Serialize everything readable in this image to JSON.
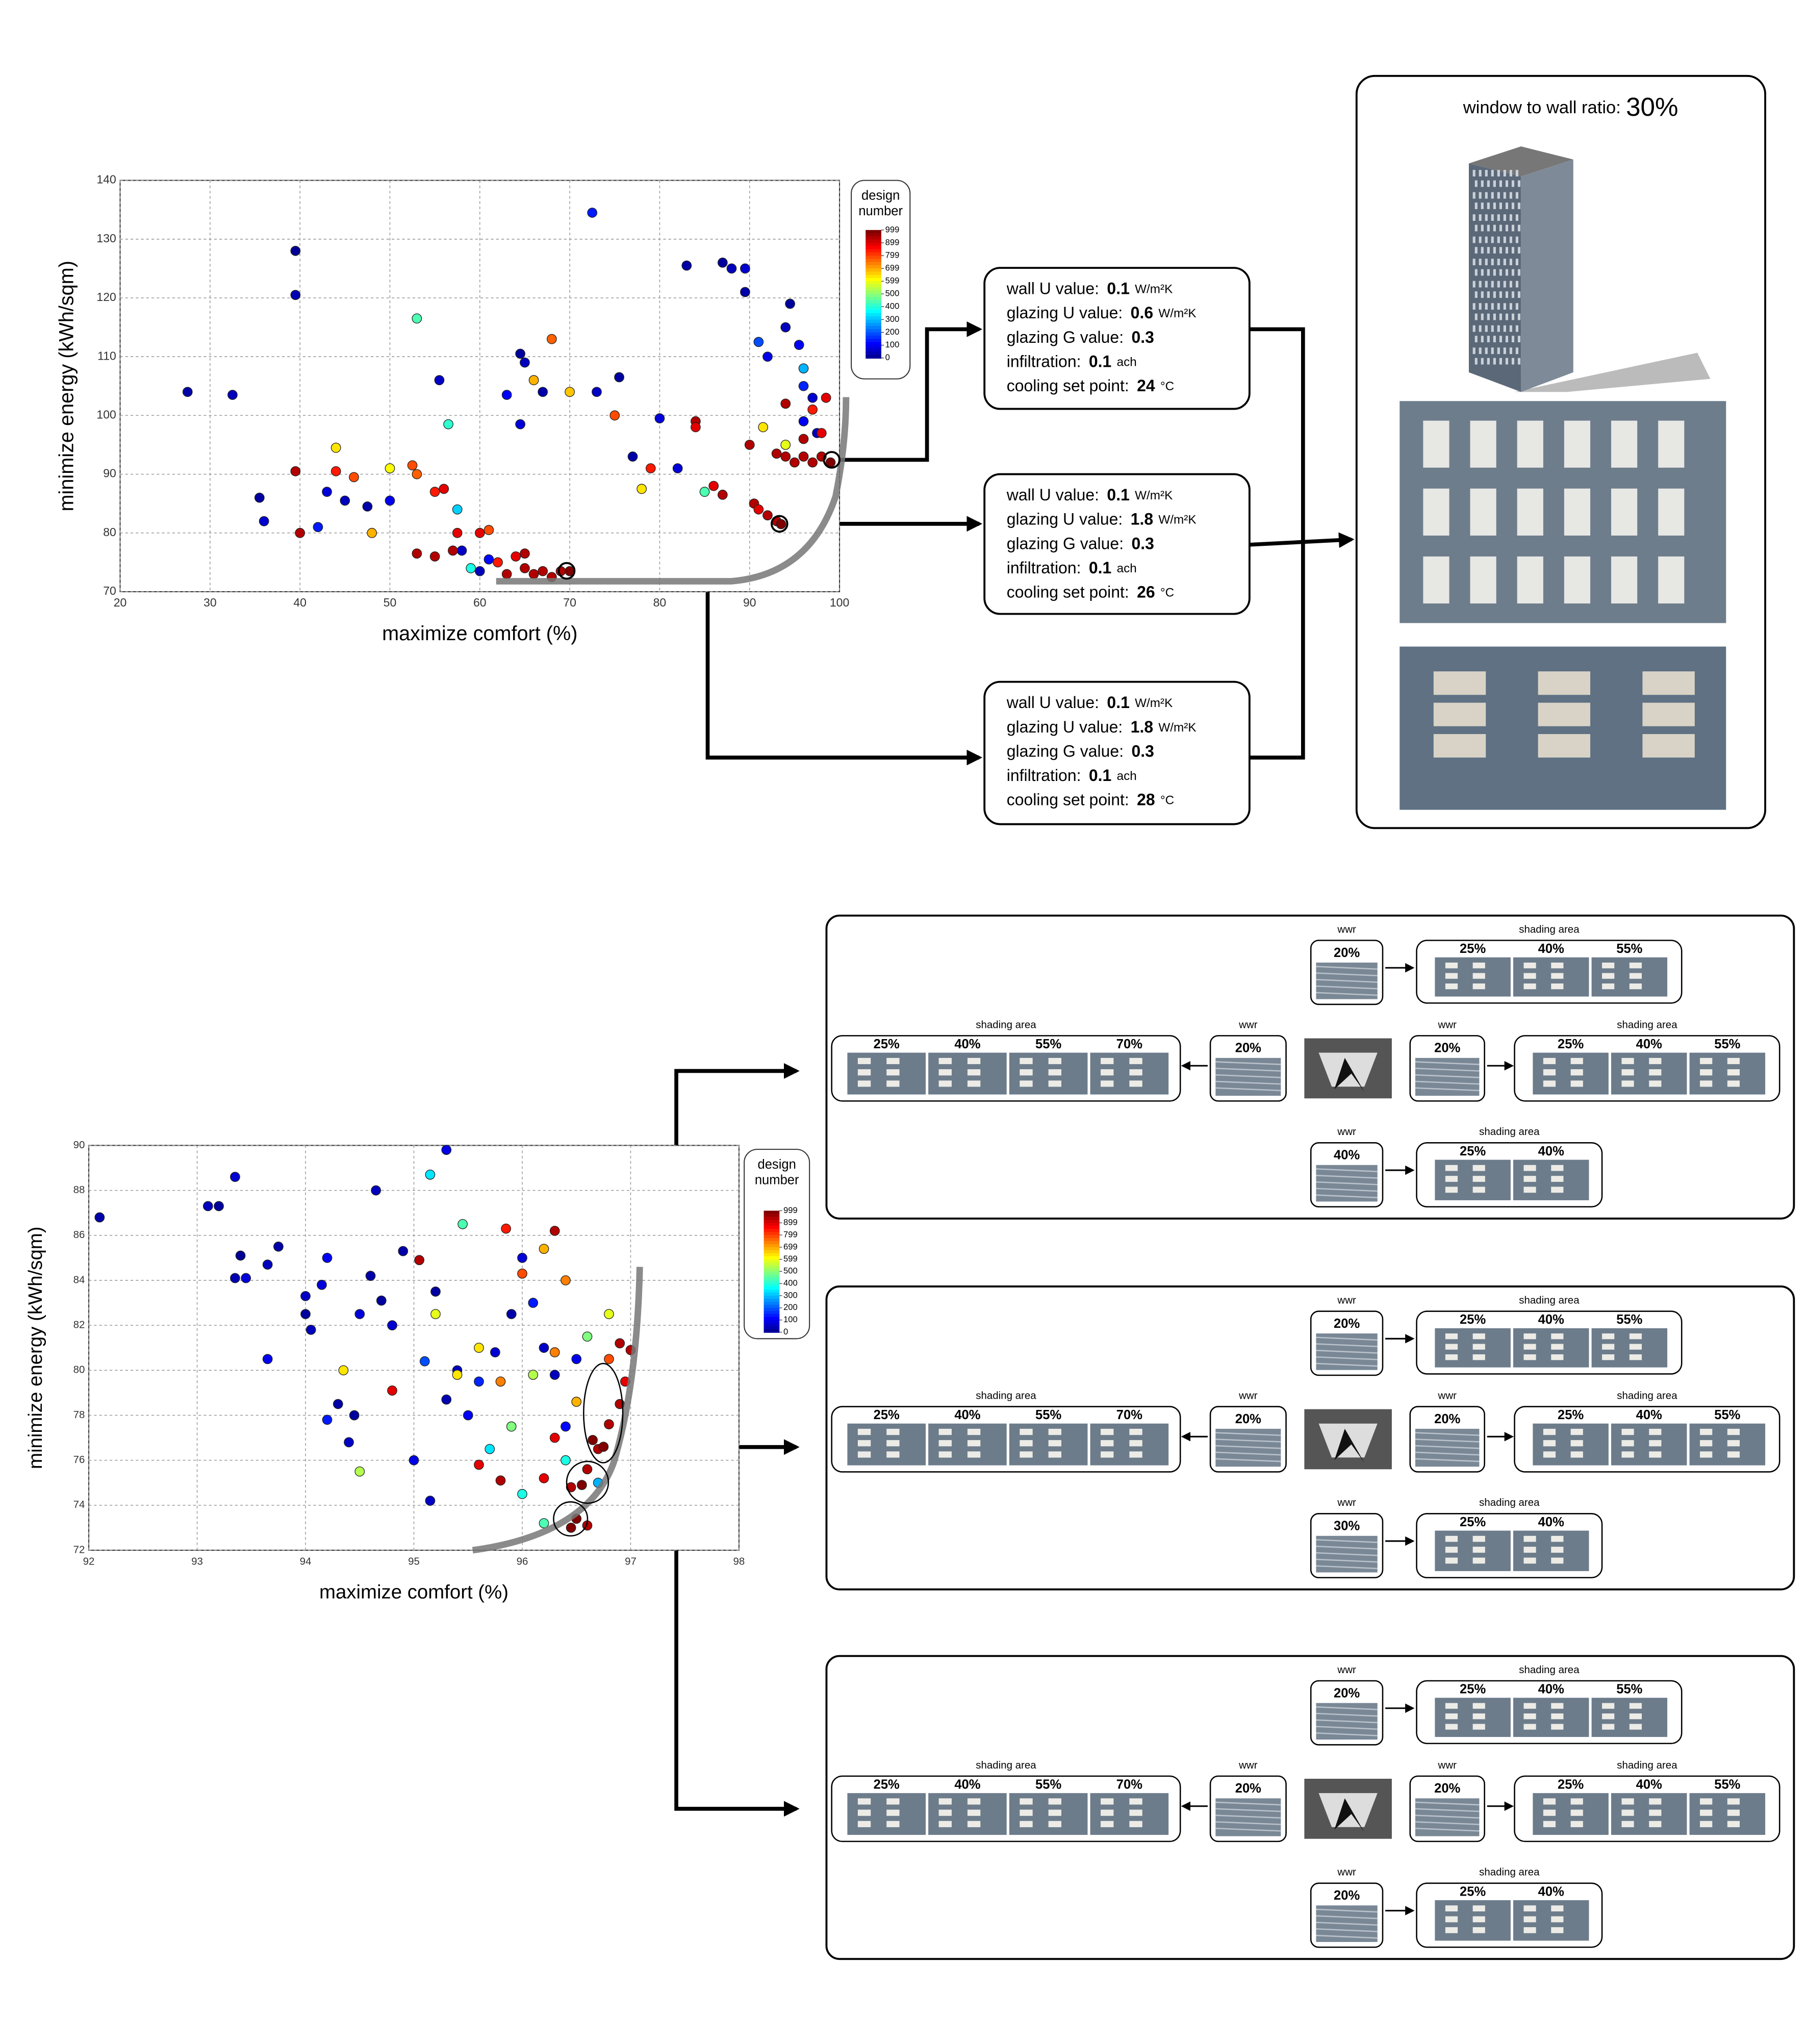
{
  "chart_data": [
    {
      "type": "scatter",
      "xlabel": "maximize comfort (%)",
      "ylabel": "minimize energy (kWh/sqm)",
      "xlim": [
        20,
        100
      ],
      "ylim": [
        70,
        140
      ],
      "xticks": [
        20,
        30,
        40,
        50,
        60,
        70,
        80,
        90,
        100
      ],
      "yticks": [
        70,
        80,
        90,
        100,
        110,
        120,
        130,
        140
      ],
      "grid": true,
      "colorbar": {
        "title": "design number",
        "clim": [
          0,
          999
        ],
        "ticks": [
          999,
          899,
          799,
          699,
          599,
          500,
          400,
          300,
          200,
          100,
          0
        ]
      },
      "x": [
        27.5,
        32.5,
        35.5,
        36,
        39.5,
        39.5,
        43,
        45,
        47.5,
        50,
        55.5,
        64.5,
        65,
        64.5,
        63,
        67,
        72.5,
        73,
        75.5,
        80,
        83,
        87,
        88,
        89.5,
        89.5,
        91,
        92,
        94.5,
        94,
        95.5,
        96,
        97,
        77,
        82,
        42,
        58,
        60,
        61,
        96,
        97.5,
        53,
        56.5,
        44,
        50,
        57.5,
        48,
        59,
        96,
        91.5,
        94,
        85,
        78,
        70,
        68,
        66,
        53,
        46,
        39.5,
        40,
        44,
        52.5,
        55,
        56,
        57.5,
        60,
        61,
        53,
        55,
        57,
        62,
        64,
        65,
        63,
        65,
        66,
        67,
        68,
        69,
        70,
        84,
        84,
        90,
        90.5,
        91,
        92,
        93,
        93.5,
        93,
        94,
        95,
        96,
        97,
        98,
        99,
        98,
        97,
        96,
        98.5,
        94,
        86,
        87,
        75,
        79
      ],
      "values": [
        104,
        103.5,
        86,
        82,
        128,
        120.5,
        87,
        85.5,
        84.5,
        85.5,
        106,
        110.5,
        109,
        98.5,
        103.5,
        104,
        134.5,
        104,
        106.5,
        99.5,
        125.5,
        126,
        125,
        125,
        121,
        112.5,
        110,
        119,
        115,
        112,
        105,
        103,
        93,
        91,
        81,
        77,
        73.5,
        75.5,
        99,
        97,
        116.5,
        98.5,
        94.5,
        91,
        84,
        80,
        74,
        108,
        98,
        95,
        87,
        87.5,
        104,
        113,
        106,
        90,
        89.5,
        90.5,
        80,
        90.5,
        91.5,
        87,
        87.5,
        80,
        80,
        80.5,
        76.5,
        76,
        77,
        75,
        76,
        76.5,
        73,
        74,
        73,
        73.5,
        72.5,
        73.5,
        73.5,
        99,
        98,
        95,
        85,
        84,
        83,
        82,
        81.5,
        93.5,
        93,
        92,
        93,
        92,
        93,
        92,
        97,
        101,
        96,
        103,
        102,
        88,
        86.5,
        100,
        91
      ],
      "color_values": [
        40,
        60,
        30,
        80,
        20,
        50,
        90,
        60,
        40,
        110,
        70,
        30,
        60,
        90,
        120,
        40,
        150,
        70,
        30,
        90,
        40,
        30,
        60,
        80,
        40,
        200,
        100,
        30,
        60,
        120,
        160,
        80,
        40,
        90,
        150,
        70,
        60,
        130,
        110,
        70,
        450,
        420,
        650,
        620,
        330,
        700,
        400,
        300,
        650,
        600,
        450,
        650,
        680,
        780,
        700,
        780,
        800,
        950,
        950,
        850,
        800,
        850,
        900,
        900,
        900,
        800,
        950,
        950,
        950,
        850,
        900,
        950,
        950,
        950,
        950,
        950,
        950,
        950,
        999,
        950,
        900,
        950,
        950,
        900,
        950,
        950,
        999,
        950,
        950,
        950,
        950,
        950,
        950,
        999,
        900,
        850,
        950,
        900,
        950,
        900,
        950,
        800,
        850
      ]
    },
    {
      "type": "scatter",
      "xlabel": "maximize comfort (%)",
      "ylabel": "minimize energy (kWh/sqm)",
      "xlim": [
        92,
        98
      ],
      "ylim": [
        72,
        90
      ],
      "xticks": [
        92,
        93,
        94,
        95,
        96,
        97,
        98
      ],
      "yticks": [
        72,
        74,
        76,
        78,
        80,
        82,
        84,
        86,
        88,
        90
      ],
      "grid": true,
      "colorbar": {
        "title": "design number",
        "clim": [
          0,
          999
        ],
        "ticks": [
          999,
          899,
          799,
          699,
          599,
          500,
          400,
          300,
          200,
          100,
          0
        ]
      },
      "x": [
        92.1,
        93.1,
        93.2,
        93.35,
        93.4,
        93.35,
        93.45,
        93.65,
        93.75,
        93.65,
        94,
        94,
        94.05,
        94.15,
        94.2,
        94.3,
        94.2,
        94.4,
        94.45,
        94.5,
        94.6,
        94.7,
        94.65,
        94.8,
        94.9,
        95.1,
        95.3,
        95.2,
        95.4,
        95.5,
        95.6,
        95.75,
        95.9,
        96,
        96.1,
        96.2,
        96.3,
        96.4,
        96.5,
        95.15,
        95,
        95.3,
        95.15,
        95.45,
        94.5,
        95.7,
        95.9,
        96,
        96.2,
        96.6,
        96.8,
        96.1,
        94.35,
        95.2,
        96.4,
        96.7,
        95.6,
        96.2,
        95.85,
        96.4,
        96.8,
        96.5,
        95.8,
        95.4,
        96,
        96.3,
        96.3,
        95.05,
        96.9,
        97,
        96.95,
        96.9,
        96.8,
        96.7,
        96.6,
        96.45,
        96.2,
        96.5,
        96.45,
        96.6,
        96.65,
        96.75,
        96.55,
        95.6,
        95.8,
        96.3,
        94.8
      ],
      "values": [
        86.8,
        87.3,
        87.3,
        88.6,
        85.1,
        84.1,
        84.1,
        84.7,
        85.5,
        80.5,
        83.3,
        82.5,
        81.8,
        83.8,
        85,
        78.5,
        77.8,
        76.8,
        78,
        82.5,
        84.2,
        83.1,
        88,
        82,
        85.3,
        80.4,
        89.8,
        83.5,
        80,
        78,
        79.5,
        80.8,
        82.5,
        85,
        83,
        81,
        79.8,
        77.5,
        80.5,
        74.2,
        76,
        78.7,
        88.7,
        86.5,
        75.5,
        76.5,
        77.5,
        74.5,
        73.2,
        81.5,
        82.5,
        79.8,
        80,
        82.5,
        76,
        75,
        81,
        85.4,
        86.3,
        84,
        80.5,
        78.6,
        79.5,
        79.8,
        84.3,
        80.8,
        86.2,
        84.9,
        81.2,
        80.9,
        79.5,
        78.5,
        77.6,
        76.5,
        75.6,
        74.8,
        75.2,
        73.4,
        73,
        73.1,
        76.9,
        76.6,
        74.9,
        75.8,
        75.1,
        77,
        79.1
      ],
      "color_values": [
        40,
        60,
        30,
        80,
        20,
        50,
        90,
        60,
        40,
        110,
        70,
        30,
        60,
        90,
        120,
        40,
        150,
        70,
        30,
        90,
        40,
        30,
        60,
        80,
        40,
        200,
        100,
        30,
        60,
        120,
        160,
        80,
        40,
        90,
        150,
        70,
        60,
        130,
        110,
        70,
        100,
        50,
        350,
        450,
        550,
        350,
        500,
        400,
        450,
        500,
        600,
        550,
        650,
        600,
        400,
        300,
        650,
        700,
        850,
        750,
        800,
        700,
        750,
        650,
        800,
        750,
        950,
        950,
        950,
        950,
        900,
        950,
        950,
        950,
        950,
        950,
        900,
        999,
        999,
        950,
        999,
        999,
        999,
        900,
        950,
        900,
        900
      ]
    }
  ],
  "top_diagram": {
    "params": [
      {
        "rows": [
          {
            "label": "wall U value:",
            "value": "0.1",
            "unit": "W/m²K"
          },
          {
            "label": "glazing U value:",
            "value": "0.6",
            "unit": "W/m²K"
          },
          {
            "label": "glazing G value:",
            "value": "0.3"
          },
          {
            "label": "infiltration:",
            "value": "0.1",
            "unit": "ach"
          },
          {
            "label": "cooling set point:",
            "value": "24",
            "unit": "°C"
          }
        ]
      },
      {
        "rows": [
          {
            "label": "wall U value:",
            "value": "0.1",
            "unit": "W/m²K"
          },
          {
            "label": "glazing U value:",
            "value": "1.8",
            "unit": "W/m²K"
          },
          {
            "label": "glazing G value:",
            "value": "0.3"
          },
          {
            "label": "infiltration:",
            "value": "0.1",
            "unit": "ach"
          },
          {
            "label": "cooling set point:",
            "value": "26",
            "unit": "°C"
          }
        ]
      },
      {
        "rows": [
          {
            "label": "wall U value:",
            "value": "0.1",
            "unit": "W/m²K"
          },
          {
            "label": "glazing U value:",
            "value": "1.8",
            "unit": "W/m²K"
          },
          {
            "label": "glazing G value:",
            "value": "0.3"
          },
          {
            "label": "infiltration:",
            "value": "0.1",
            "unit": "ach"
          },
          {
            "label": "cooling set point:",
            "value": "28",
            "unit": "°C"
          }
        ]
      }
    ],
    "render": {
      "label": "window to wall ratio:",
      "value": "30%"
    }
  },
  "bottom_diagram": {
    "panels": [
      {
        "top": {
          "wwr_title": "wwr",
          "wwr": "20%",
          "shading_title": "shading area",
          "shading": [
            "25%",
            "40%",
            "55%"
          ]
        },
        "left": {
          "wwr_title": "wwr",
          "wwr": "20%",
          "shading_title": "shading area",
          "shading": [
            "25%",
            "40%",
            "55%",
            "70%"
          ]
        },
        "right": {
          "wwr_title": "wwr",
          "wwr": "20%",
          "shading_title": "shading area",
          "shading": [
            "25%",
            "40%",
            "55%"
          ]
        },
        "bottom": {
          "wwr_title": "wwr",
          "wwr": "40%",
          "shading_title": "shading area",
          "shading": [
            "25%",
            "40%"
          ]
        }
      },
      {
        "top": {
          "wwr_title": "wwr",
          "wwr": "20%",
          "shading_title": "shading area",
          "shading": [
            "25%",
            "40%",
            "55%"
          ]
        },
        "left": {
          "wwr_title": "wwr",
          "wwr": "20%",
          "shading_title": "shading area",
          "shading": [
            "25%",
            "40%",
            "55%",
            "70%"
          ]
        },
        "right": {
          "wwr_title": "wwr",
          "wwr": "20%",
          "shading_title": "shading area",
          "shading": [
            "25%",
            "40%",
            "55%"
          ]
        },
        "bottom": {
          "wwr_title": "wwr",
          "wwr": "30%",
          "shading_title": "shading area",
          "shading": [
            "25%",
            "40%"
          ]
        }
      },
      {
        "top": {
          "wwr_title": "wwr",
          "wwr": "20%",
          "shading_title": "shading area",
          "shading": [
            "25%",
            "40%",
            "55%"
          ]
        },
        "left": {
          "wwr_title": "wwr",
          "wwr": "20%",
          "shading_title": "shading area",
          "shading": [
            "25%",
            "40%",
            "55%",
            "70%"
          ]
        },
        "right": {
          "wwr_title": "wwr",
          "wwr": "20%",
          "shading_title": "shading area",
          "shading": [
            "25%",
            "40%",
            "55%"
          ]
        },
        "bottom": {
          "wwr_title": "wwr",
          "wwr": "20%",
          "shading_title": "shading area",
          "shading": [
            "25%",
            "40%"
          ]
        }
      }
    ]
  }
}
